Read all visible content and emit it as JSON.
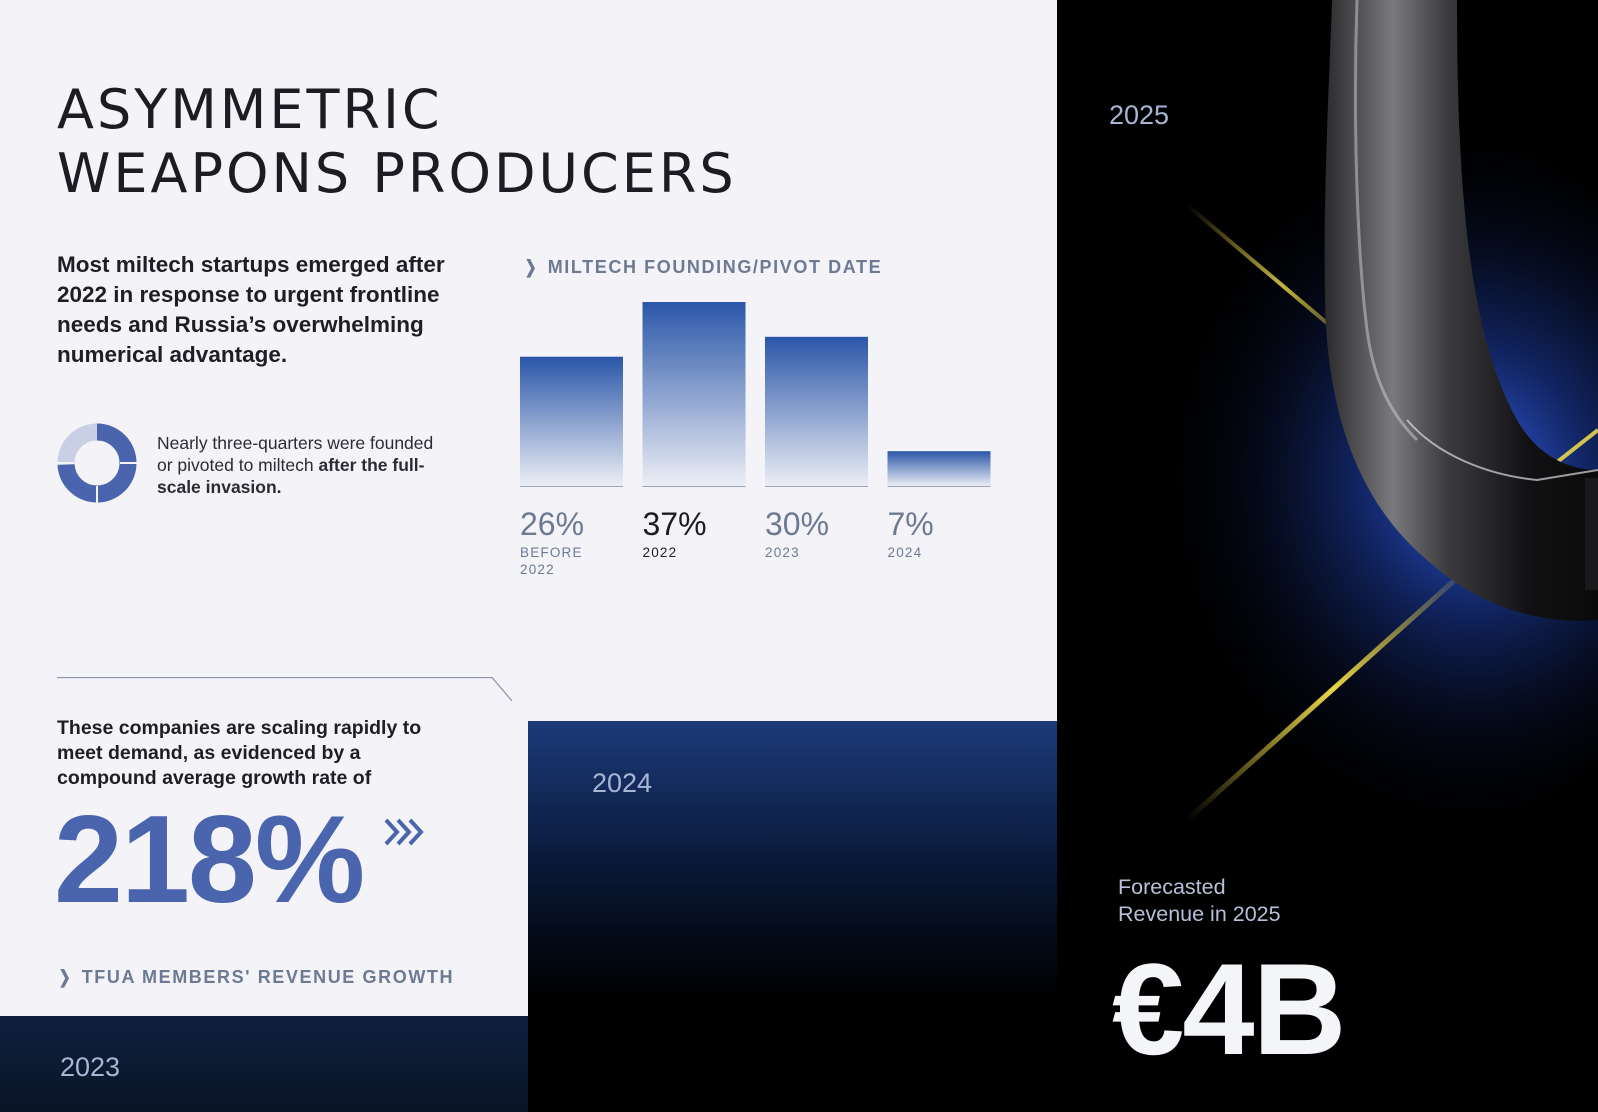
{
  "slide": {
    "title_line1": "ASYMMETRIC",
    "title_line2": "WEAPONS PRODUCERS",
    "intro": "Most miltech startups emerged after 2022 in response to urgent frontline needs and Russia’s overwhelming numerical advantage.",
    "donut": {
      "caption_part1": "Nearly three-quarters were founded or pivoted to miltech ",
      "caption_part2": "after the full-scale invasion.",
      "value_percent": 74,
      "accent": "#4a64ad",
      "track": "#c9cfe4"
    },
    "chart_label": "MILTECH FOUNDING/PIVOT DATE",
    "growth": {
      "text": "These companies are scaling rapidly to meet demand, as evidenced by a compound average growth rate of",
      "value": "218%",
      "label": "TFUA MEMBERS' REVENUE GROWTH",
      "arrows_icon": "triple-chevron-right-icon"
    },
    "years": {
      "y2023": "2023",
      "y2024": "2024",
      "y2025": "2025"
    },
    "forecast": {
      "label_line1": "Forecasted",
      "label_line2": "Revenue in 2025",
      "value": "€4B"
    },
    "colors": {
      "bar_top": "#2a56a8",
      "bar_bottom": "#eceef5",
      "highlight_text": "#1c1c22",
      "muted_text": "#6d7a93",
      "light_bg": "#f3f3f8",
      "navy": "#0e1f3e",
      "glow_blue": "#2c5cf0",
      "glow_yellow": "#f5e04a"
    }
  },
  "chart_data": {
    "type": "bar",
    "title": "MILTECH FOUNDING/PIVOT DATE",
    "categories": [
      "BEFORE 2022",
      "2022",
      "2023",
      "2024"
    ],
    "values": [
      26,
      37,
      30,
      7
    ],
    "value_labels": [
      "26%",
      "37%",
      "30%",
      "7%"
    ],
    "highlight_index": 1,
    "ylim": [
      0,
      37
    ],
    "grid": false,
    "legend": "none"
  }
}
